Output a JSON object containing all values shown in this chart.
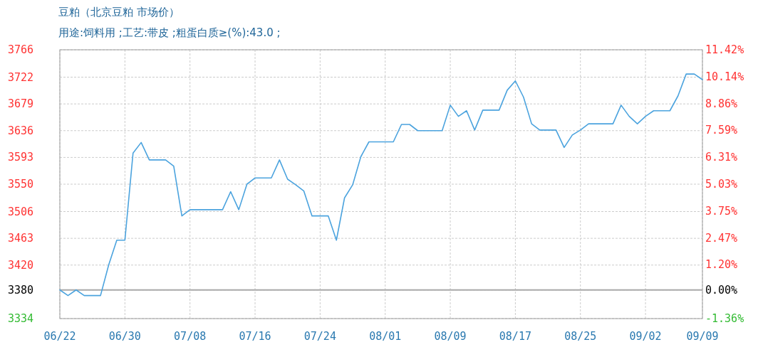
{
  "chart_data": {
    "type": "line",
    "title": "豆粕（北京豆粕 市场价）",
    "subtitle": "用途:饲料用 ;工艺:带皮 ;粗蛋白质≥(%):43.0 ;",
    "x": [
      "--06-22",
      "--06-23",
      "--06-24",
      "--06-25",
      "--06-26",
      "--06-27",
      "--06-28",
      "--06-29",
      "--06-30",
      "--07-01",
      "--07-02",
      "--07-03",
      "--07-04",
      "--07-05",
      "--07-06",
      "--07-07",
      "--07-08",
      "--07-09",
      "--07-10",
      "--07-11",
      "--07-12",
      "--07-13",
      "--07-14",
      "--07-15",
      "--07-16",
      "--07-17",
      "--07-18",
      "--07-19",
      "--07-20",
      "--07-21",
      "--07-22",
      "--07-23",
      "--07-24",
      "--07-25",
      "--07-26",
      "--07-27",
      "--07-28",
      "--07-29",
      "--07-30",
      "--07-31",
      "--08-01",
      "--08-02",
      "--08-03",
      "--08-04",
      "--08-05",
      "--08-06",
      "--08-07",
      "--08-08",
      "--08-09",
      "--08-10",
      "--08-11",
      "--08-12",
      "--08-13",
      "--08-14",
      "--08-15",
      "--08-16",
      "--08-17",
      "--08-18",
      "--08-19",
      "--08-20",
      "--08-21",
      "--08-22",
      "--08-23",
      "--08-24",
      "--08-25",
      "--08-26",
      "--08-27",
      "--08-28",
      "--08-29",
      "--08-30",
      "--08-31",
      "--09-01",
      "--09-02",
      "--09-03",
      "--09-04",
      "--09-05",
      "--09-06",
      "--09-07",
      "--09-08",
      "--09-09"
    ],
    "values": [
      3380,
      3371,
      3380,
      3371,
      3371,
      3371,
      3420,
      3460,
      3460,
      3600,
      3617,
      3589,
      3589,
      3589,
      3579,
      3499,
      3509,
      3509,
      3509,
      3509,
      3509,
      3538,
      3509,
      3550,
      3560,
      3560,
      3560,
      3589,
      3558,
      3549,
      3539,
      3499,
      3499,
      3499,
      3460,
      3528,
      3549,
      3594,
      3618,
      3618,
      3618,
      3618,
      3646,
      3646,
      3636,
      3636,
      3636,
      3636,
      3677,
      3659,
      3668,
      3637,
      3669,
      3669,
      3669,
      3701,
      3716,
      3690,
      3647,
      3637,
      3637,
      3637,
      3609,
      3629,
      3637,
      3647,
      3647,
      3647,
      3647,
      3677,
      3659,
      3647,
      3659,
      3668,
      3668,
      3668,
      3692,
      3727,
      3727,
      3718
    ],
    "color": "#4ba3de",
    "xlim": [
      "--06-22",
      "--09-09"
    ],
    "xticks": [
      {
        "value": "--06-22",
        "label": "06/22"
      },
      {
        "value": "--06-30",
        "label": "06/30"
      },
      {
        "value": "--07-08",
        "label": "07/08"
      },
      {
        "value": "--07-16",
        "label": "07/16"
      },
      {
        "value": "--07-24",
        "label": "07/24"
      },
      {
        "value": "--08-01",
        "label": "08/01"
      },
      {
        "value": "--08-09",
        "label": "08/09"
      },
      {
        "value": "--08-17",
        "label": "08/17"
      },
      {
        "value": "--08-25",
        "label": "08/25"
      },
      {
        "value": "--09-02",
        "label": "09/02"
      },
      {
        "value": "--09-09",
        "label": "09/09"
      }
    ],
    "ylim": [
      3334,
      3766
    ],
    "yticks": [
      3334,
      3380,
      3420,
      3463,
      3506,
      3550,
      3593,
      3636,
      3679,
      3722,
      3766
    ],
    "y2lim": [
      -1.36,
      11.42
    ],
    "y2ticks": [
      {
        "value": -1.36,
        "label": "-1.36%"
      },
      {
        "value": 0,
        "label": "0.00%"
      },
      {
        "value": 1.2,
        "label": "1.20%"
      },
      {
        "value": 2.47,
        "label": "2.47%"
      },
      {
        "value": 3.75,
        "label": "3.75%"
      },
      {
        "value": 5.03,
        "label": "5.03%"
      },
      {
        "value": 6.31,
        "label": "6.31%"
      },
      {
        "value": 7.59,
        "label": "7.59%"
      },
      {
        "value": 8.86,
        "label": "8.86%"
      },
      {
        "value": 10.14,
        "label": "10.14%"
      },
      {
        "value": 11.42,
        "label": "11.42%"
      }
    ],
    "ref_lines": [
      {
        "axis": "y",
        "value": 3380,
        "color": "#a8a8a8"
      }
    ],
    "grid": true
  }
}
